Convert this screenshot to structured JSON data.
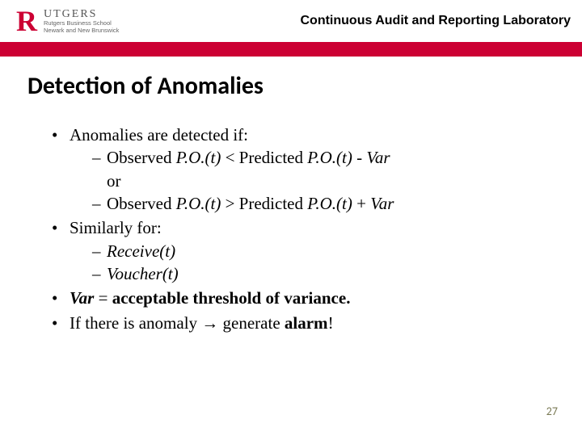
{
  "header": {
    "logo_letter": "R",
    "logo_word": "UTGERS",
    "logo_sub1": "Rutgers Business School",
    "logo_sub2": "Newark and New Brunswick",
    "lab_title": "Continuous Audit and Reporting Laboratory"
  },
  "slide": {
    "title": "Detection of Anomalies"
  },
  "b1": {
    "lead": "Anomalies are detected if:",
    "line1a": "Observed  ",
    "line1b": "P.O.(t)",
    "line1c": " < Predicted ",
    "line1d": "P.O.(t)",
    "line1e": " - ",
    "line1f": "Var",
    "or": "or",
    "line2a": "Observed  ",
    "line2b": "P.O.(t)",
    "line2c": " > Predicted ",
    "line2d": "P.O.(t)",
    "line2e": " + ",
    "line2f": "Var"
  },
  "b2": {
    "lead": "Similarly for:",
    "s1": "Receive(t)",
    "s2": "Voucher(t)"
  },
  "b3": {
    "v": "Var",
    "eq": " = ",
    "rest": "acceptable threshold of variance."
  },
  "b4": {
    "a": "If there is anomaly ",
    "arrow": "→",
    "b": " generate ",
    "c": "alarm",
    "d": "!"
  },
  "page": "27",
  "colors": {
    "brand_red": "#cc0033",
    "text": "#000000",
    "bg": "#ffffff",
    "pagenum": "#7a7a55"
  }
}
